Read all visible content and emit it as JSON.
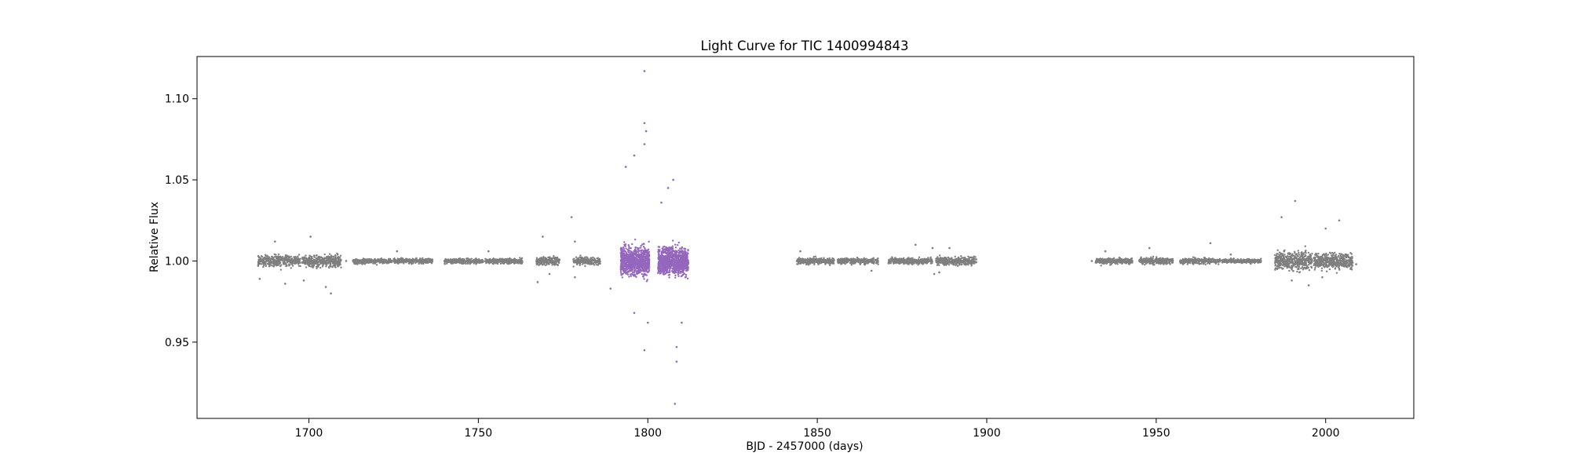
{
  "chart_data": {
    "type": "scatter",
    "title": "Light Curve for TIC 1400994843",
    "xlabel": "BJD - 2457000 (days)",
    "ylabel": "Relative Flux",
    "xlim": [
      1667,
      2026
    ],
    "ylim": [
      0.903,
      1.126
    ],
    "xticks": [
      1700,
      1750,
      1800,
      1850,
      1900,
      1950,
      2000
    ],
    "xtick_labels": [
      "1700",
      "1750",
      "1800",
      "1850",
      "1900",
      "1950",
      "2000"
    ],
    "yticks": [
      0.95,
      1.0,
      1.05,
      1.1
    ],
    "ytick_labels": [
      "0.95",
      "1.00",
      "1.05",
      "1.10"
    ],
    "grid": false,
    "colors": {
      "normal": "#7f7f7f",
      "highlight": "#9467bd"
    },
    "series": [
      {
        "color": "#7f7f7f",
        "segments": [
          {
            "x_start": 1685,
            "x_end": 1697.5,
            "y_center": 1.0,
            "y_spread": 0.006,
            "density": 380,
            "outliers": [
              [
                1685.5,
                0.989
              ],
              [
                1693,
                0.986
              ],
              [
                1690,
                1.012
              ]
            ]
          },
          {
            "x_start": 1698,
            "x_end": 1709.5,
            "y_center": 1.0,
            "y_spread": 0.006,
            "density": 380,
            "outliers": [
              [
                1698.5,
                0.988
              ],
              [
                1705,
                0.984
              ],
              [
                1706.5,
                0.98
              ],
              [
                1700.5,
                1.015
              ]
            ]
          },
          {
            "x_start": 1713,
            "x_end": 1724.5,
            "y_center": 1.0,
            "y_spread": 0.0025,
            "density": 300,
            "outliers": [
              [
                1711,
                1.0
              ]
            ]
          },
          {
            "x_start": 1725,
            "x_end": 1736.5,
            "y_center": 1.0,
            "y_spread": 0.0025,
            "density": 300,
            "outliers": [
              [
                1726,
                1.006
              ]
            ]
          },
          {
            "x_start": 1740,
            "x_end": 1751.5,
            "y_center": 1.0,
            "y_spread": 0.0025,
            "density": 300,
            "outliers": []
          },
          {
            "x_start": 1752,
            "x_end": 1763,
            "y_center": 1.0,
            "y_spread": 0.0025,
            "density": 300,
            "outliers": [
              [
                1753,
                1.006
              ]
            ]
          },
          {
            "x_start": 1767,
            "x_end": 1774,
            "y_center": 1.0,
            "y_spread": 0.004,
            "density": 200,
            "outliers": [
              [
                1767.5,
                0.987
              ],
              [
                1769,
                1.015
              ],
              [
                1771,
                0.992
              ]
            ]
          },
          {
            "x_start": 1778,
            "x_end": 1786,
            "y_center": 1.0,
            "y_spread": 0.004,
            "density": 220,
            "outliers": [
              [
                1777.5,
                1.027
              ],
              [
                1778.5,
                0.99
              ],
              [
                1778.5,
                1.012
              ]
            ]
          },
          {
            "x_start": 1844,
            "x_end": 1855,
            "y_center": 1.0,
            "y_spread": 0.003,
            "density": 300,
            "outliers": [
              [
                1845,
                1.006
              ]
            ]
          },
          {
            "x_start": 1856,
            "x_end": 1868,
            "y_center": 1.0,
            "y_spread": 0.003,
            "density": 300,
            "outliers": [
              [
                1866,
                0.994
              ]
            ]
          },
          {
            "x_start": 1871,
            "x_end": 1884,
            "y_center": 1.0,
            "y_spread": 0.003,
            "density": 320,
            "outliers": [
              [
                1879,
                1.01
              ],
              [
                1884,
                1.008
              ],
              [
                1884.5,
                0.992
              ]
            ]
          },
          {
            "x_start": 1885,
            "x_end": 1897,
            "y_center": 1.0,
            "y_spread": 0.004,
            "density": 320,
            "outliers": [
              [
                1889,
                1.008
              ],
              [
                1886,
                0.993
              ]
            ]
          },
          {
            "x_start": 1932,
            "x_end": 1943,
            "y_center": 1.0,
            "y_spread": 0.003,
            "density": 280,
            "outliers": [
              [
                1931,
                1.0
              ],
              [
                1935,
                1.006
              ]
            ]
          },
          {
            "x_start": 1945,
            "x_end": 1955,
            "y_center": 1.0,
            "y_spread": 0.003,
            "density": 280,
            "outliers": [
              [
                1948,
                1.008
              ]
            ]
          },
          {
            "x_start": 1957,
            "x_end": 1969,
            "y_center": 1.0,
            "y_spread": 0.003,
            "density": 300,
            "outliers": [
              [
                1966,
                1.011
              ]
            ]
          },
          {
            "x_start": 1969.5,
            "x_end": 1981,
            "y_center": 1.0,
            "y_spread": 0.002,
            "density": 280,
            "outliers": [
              [
                1972,
                1.004
              ]
            ]
          },
          {
            "x_start": 1985,
            "x_end": 1996,
            "y_center": 1.0,
            "y_spread": 0.009,
            "density": 450,
            "outliers": [
              [
                1987,
                1.027
              ],
              [
                1991,
                1.037
              ],
              [
                1995,
                0.985
              ],
              [
                1990,
                0.988
              ]
            ]
          },
          {
            "x_start": 1996.5,
            "x_end": 2008,
            "y_center": 1.0,
            "y_spread": 0.008,
            "density": 450,
            "outliers": [
              [
                2000,
                1.02
              ],
              [
                1999,
                0.99
              ],
              [
                2004,
                1.025
              ],
              [
                2009,
                0.998
              ]
            ]
          }
        ]
      },
      {
        "color": "#9467bd",
        "segments": [
          {
            "x_start": 1792,
            "x_end": 1800.5,
            "y_center": 1.0,
            "y_spread": 0.014,
            "density": 900,
            "outliers": [
              [
                1799,
                1.117
              ],
              [
                1799,
                1.085
              ],
              [
                1799.5,
                1.08
              ],
              [
                1799,
                1.072
              ],
              [
                1796,
                1.065
              ],
              [
                1793.5,
                1.058
              ],
              [
                1799,
                0.945
              ],
              [
                1796,
                0.968
              ],
              [
                1800,
                0.962
              ],
              [
                1789,
                0.983
              ]
            ]
          },
          {
            "x_start": 1803,
            "x_end": 1812,
            "y_center": 1.0,
            "y_spread": 0.014,
            "density": 900,
            "outliers": [
              [
                1808,
                0.912
              ],
              [
                1808.5,
                0.938
              ],
              [
                1808.5,
                0.947
              ],
              [
                1810,
                0.962
              ],
              [
                1807.5,
                1.05
              ],
              [
                1806,
                1.045
              ],
              [
                1804,
                1.036
              ]
            ]
          }
        ]
      }
    ]
  }
}
